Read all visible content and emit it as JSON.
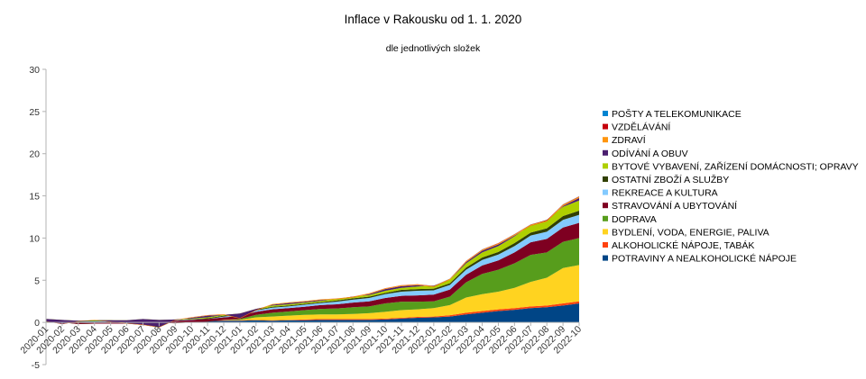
{
  "chart_data": {
    "type": "area",
    "stacked": true,
    "title": "Inflace v Rakousku od 1. 1. 2020",
    "subtitle": "dle jednotlivých složek",
    "xlabel": "",
    "ylabel": "",
    "ylim": [
      -5,
      30
    ],
    "yticks": [
      -5,
      0,
      5,
      10,
      15,
      20,
      25,
      30
    ],
    "grid": false,
    "legend_position": "right",
    "categories": [
      "2020-01",
      "2020-02",
      "2020-03",
      "2020-04",
      "2020-05",
      "2020-06",
      "2020-07",
      "2020-08",
      "2020-09",
      "2020-10",
      "2020-11",
      "2020-12",
      "2021-01",
      "2021-02",
      "2021-03",
      "2021-04",
      "2021-05",
      "2021-06",
      "2021-07",
      "2021-08",
      "2021-09",
      "2021-10",
      "2021-11",
      "2021-12",
      "2022-01",
      "2022-02",
      "2022-03",
      "2022-04",
      "2022-05",
      "2022-06",
      "2022-07",
      "2022-08",
      "2022-09",
      "2022-10"
    ],
    "series": [
      {
        "name": "POTRAVINY A NEALKOHOLICKÉ NÁPOJE",
        "color": "#004586",
        "values": [
          0.05,
          0.1,
          0.1,
          0.2,
          0.2,
          0.1,
          0.1,
          0.1,
          0.05,
          0.1,
          0.15,
          0.2,
          0.2,
          0.25,
          0.2,
          0.25,
          0.25,
          0.3,
          0.3,
          0.3,
          0.3,
          0.35,
          0.45,
          0.55,
          0.6,
          0.7,
          0.95,
          1.15,
          1.35,
          1.5,
          1.7,
          1.8,
          2.0,
          2.25
        ]
      },
      {
        "name": "ALKOHOLICKÉ NÁPOJE, TABÁK",
        "color": "#ff420e",
        "values": [
          0.02,
          0.05,
          0.05,
          0.05,
          0.05,
          0.05,
          0.05,
          0.05,
          0.05,
          0.05,
          0.05,
          0.05,
          0.05,
          0.05,
          0.05,
          0.05,
          0.1,
          0.1,
          0.1,
          0.1,
          0.1,
          0.1,
          0.1,
          0.1,
          0.1,
          0.15,
          0.2,
          0.2,
          0.2,
          0.2,
          0.2,
          0.2,
          0.25,
          0.25
        ]
      },
      {
        "name": "BYDLENÍ, VODA, ENERGIE, PALIVA",
        "color": "#ffd320",
        "values": [
          0.0,
          -0.05,
          -0.05,
          0.0,
          0.0,
          0.0,
          0.05,
          0.05,
          0.0,
          0.0,
          0.0,
          0.05,
          0.05,
          0.3,
          0.45,
          0.5,
          0.55,
          0.55,
          0.55,
          0.6,
          0.7,
          0.8,
          0.9,
          0.9,
          1.0,
          1.2,
          1.8,
          2.0,
          2.1,
          2.4,
          2.9,
          3.3,
          4.2,
          4.3
        ]
      },
      {
        "name": "DOPRAVA",
        "color": "#579d1c",
        "values": [
          0.1,
          -0.1,
          -0.3,
          -0.4,
          -0.4,
          -0.3,
          -0.2,
          -0.25,
          -0.2,
          -0.15,
          -0.1,
          0.0,
          0.1,
          0.3,
          0.45,
          0.5,
          0.55,
          0.65,
          0.7,
          0.8,
          0.8,
          1.0,
          1.0,
          0.9,
          0.8,
          1.0,
          1.8,
          2.4,
          2.6,
          2.9,
          3.2,
          3.0,
          3.1,
          3.2
        ]
      },
      {
        "name": "STRAVOVÁNÍ A UBYTOVÁNÍ",
        "color": "#7e0021",
        "values": [
          0.1,
          0.15,
          0.2,
          0.2,
          0.2,
          0.2,
          0.25,
          0.25,
          0.3,
          0.3,
          0.3,
          0.3,
          0.35,
          0.35,
          0.4,
          0.4,
          0.4,
          0.45,
          0.5,
          0.55,
          0.6,
          0.65,
          0.7,
          0.75,
          0.8,
          0.85,
          0.9,
          1.0,
          1.1,
          1.3,
          1.5,
          1.6,
          1.7,
          1.8
        ]
      },
      {
        "name": "REKREACE A KULTURA",
        "color": "#83caff",
        "values": [
          0.05,
          0.05,
          0.1,
          0.1,
          0.1,
          0.1,
          0.05,
          0.0,
          0.05,
          0.05,
          0.0,
          0.1,
          0.1,
          0.15,
          0.2,
          0.2,
          0.25,
          0.25,
          0.3,
          0.35,
          0.4,
          0.45,
          0.5,
          0.55,
          0.5,
          0.55,
          0.6,
          0.65,
          0.7,
          0.75,
          0.8,
          0.85,
          0.9,
          0.95
        ]
      },
      {
        "name": "OSTATNÍ ZBOŽÍ A SLUŽBY",
        "color": "#314004",
        "values": [
          0.05,
          0.05,
          0.05,
          0.05,
          0.05,
          0.05,
          0.05,
          0.05,
          0.05,
          0.05,
          0.1,
          0.1,
          0.1,
          0.1,
          0.1,
          0.1,
          0.1,
          0.1,
          0.15,
          0.15,
          0.15,
          0.15,
          0.2,
          0.2,
          0.2,
          0.2,
          0.25,
          0.3,
          0.3,
          0.35,
          0.35,
          0.4,
          0.45,
          0.5
        ]
      },
      {
        "name": "BYTOVÉ VYBAVENÍ, ZAŘÍZENÍ DOMÁCNOSTI; OPRAVY",
        "color": "#aecf00",
        "values": [
          0.05,
          0.05,
          0.05,
          0.05,
          0.05,
          0.05,
          0.05,
          0.05,
          0.05,
          0.05,
          0.1,
          0.1,
          0.1,
          0.1,
          0.15,
          0.15,
          0.15,
          0.15,
          0.2,
          0.2,
          0.2,
          0.25,
          0.25,
          0.3,
          0.35,
          0.4,
          0.5,
          0.6,
          0.7,
          0.8,
          0.9,
          1.0,
          1.1,
          1.2
        ]
      },
      {
        "name": "ODÍVÁNÍ A OBUV",
        "color": "#4b1f6f",
        "values": [
          -0.3,
          -0.5,
          -0.1,
          0.0,
          -0.2,
          -0.4,
          -0.7,
          -0.9,
          -0.1,
          0.1,
          0.2,
          0.0,
          -0.6,
          -0.2,
          0.1,
          0.15,
          0.1,
          0.1,
          -0.05,
          -0.1,
          0.1,
          0.2,
          0.2,
          0.15,
          -0.15,
          0.0,
          0.15,
          0.2,
          0.2,
          0.1,
          -0.1,
          -0.2,
          0.1,
          0.3
        ]
      },
      {
        "name": "ZDRAVÍ",
        "color": "#ff950e",
        "values": [
          0.02,
          0.03,
          0.03,
          0.04,
          0.04,
          0.04,
          0.05,
          0.05,
          0.05,
          0.05,
          0.06,
          0.06,
          0.06,
          0.07,
          0.07,
          0.07,
          0.08,
          0.08,
          0.08,
          0.09,
          0.09,
          0.09,
          0.1,
          0.1,
          0.1,
          0.11,
          0.11,
          0.12,
          0.12,
          0.13,
          0.13,
          0.14,
          0.14,
          0.15
        ]
      },
      {
        "name": "VZDĚLÁVÁNÍ",
        "color": "#c5000b",
        "values": [
          0.01,
          0.01,
          0.01,
          0.01,
          0.01,
          0.01,
          0.01,
          0.01,
          0.01,
          0.01,
          0.01,
          0.01,
          0.01,
          0.01,
          0.01,
          0.01,
          0.01,
          0.01,
          0.01,
          0.01,
          0.02,
          0.02,
          0.02,
          0.02,
          0.02,
          0.02,
          0.02,
          0.03,
          0.03,
          0.03,
          0.03,
          0.03,
          0.04,
          0.04
        ]
      },
      {
        "name": "POŠTY A TELEKOMUNIKACE",
        "color": "#0084d1",
        "values": [
          0.0,
          0.0,
          0.0,
          0.0,
          0.0,
          0.0,
          0.0,
          0.0,
          0.0,
          0.0,
          0.0,
          0.0,
          0.0,
          0.0,
          0.0,
          0.0,
          0.0,
          0.0,
          0.0,
          0.0,
          0.0,
          0.0,
          0.0,
          0.0,
          0.01,
          0.01,
          0.01,
          0.01,
          0.01,
          0.01,
          0.01,
          0.01,
          0.01,
          0.02
        ]
      }
    ]
  }
}
